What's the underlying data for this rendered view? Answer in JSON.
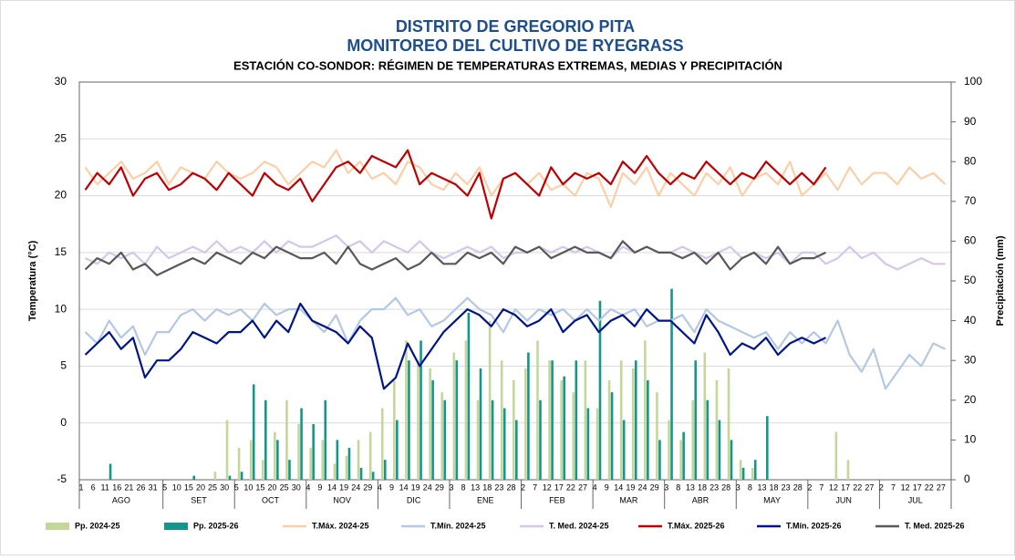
{
  "chart_data": {
    "type": "line",
    "title": "DISTRITO DE GREGORIO PITA",
    "subtitle": "MONITOREO DEL CULTIVO DE RYEGRASS",
    "subtitle2": "ESTACIÓN CO-SONDOR: RÉGIMEN DE TEMPERATURAS EXTREMAS, MEDIAS Y PRECIPITACIÓN",
    "y_label": "Temperatura (°C)",
    "y2_label": "Precipitación (mm)",
    "months": [
      {
        "label": "AGO",
        "days": [
          1,
          6,
          11,
          16,
          21,
          26,
          31
        ]
      },
      {
        "label": "SET",
        "days": [
          5,
          10,
          15,
          20,
          25,
          30
        ]
      },
      {
        "label": "OCT",
        "days": [
          5,
          10,
          15,
          20,
          25,
          30
        ]
      },
      {
        "label": "NOV",
        "days": [
          4,
          9,
          14,
          19,
          24,
          29
        ]
      },
      {
        "label": "DIC",
        "days": [
          4,
          9,
          14,
          19,
          24,
          29
        ]
      },
      {
        "label": "ENE",
        "days": [
          3,
          8,
          13,
          18,
          23,
          28
        ]
      },
      {
        "label": "FEB",
        "days": [
          2,
          7,
          12,
          17,
          22,
          27
        ]
      },
      {
        "label": "MAR",
        "days": [
          4,
          9,
          14,
          19,
          24,
          29
        ]
      },
      {
        "label": "ABR",
        "days": [
          3,
          8,
          13,
          18,
          23,
          28
        ]
      },
      {
        "label": "MAY",
        "days": [
          3,
          8,
          13,
          18,
          23,
          28
        ]
      },
      {
        "label": "JUN",
        "days": [
          2,
          7,
          12,
          17,
          22,
          27
        ]
      },
      {
        "label": "JUL",
        "days": [
          2,
          7,
          12,
          17,
          22,
          27
        ]
      }
    ],
    "ylim": [
      -5,
      30
    ],
    "yticks": [
      -5,
      0,
      5,
      10,
      15,
      20,
      25,
      30
    ],
    "y2lim": [
      0,
      100
    ],
    "y2ticks": [
      0,
      10,
      20,
      30,
      40,
      50,
      60,
      70,
      80,
      90,
      100
    ],
    "grid": true,
    "legend": "bottom",
    "series": [
      {
        "name": "Pp. 2024-25",
        "type": "bar",
        "axis": "y2",
        "color": "#c4d79b",
        "values": [
          0,
          0,
          0,
          0,
          0,
          0,
          0,
          0,
          0,
          0,
          0,
          2,
          15,
          8,
          10,
          5,
          12,
          20,
          14,
          8,
          10,
          4,
          6,
          10,
          12,
          18,
          25,
          35,
          30,
          28,
          22,
          32,
          35,
          20,
          40,
          30,
          25,
          28,
          35,
          30,
          25,
          22,
          30,
          18,
          25,
          30,
          28,
          35,
          22,
          15,
          10,
          20,
          32,
          25,
          28,
          5,
          3,
          0,
          0,
          0,
          0,
          0,
          0,
          12,
          5,
          0,
          0,
          0,
          0,
          0,
          0,
          0,
          0
        ]
      },
      {
        "name": "Pp. 2025-26",
        "type": "bar",
        "axis": "y2",
        "color": "#16968a",
        "values": [
          0,
          0,
          4,
          0,
          0,
          0,
          0,
          0,
          0,
          1,
          0,
          0,
          1,
          2,
          24,
          20,
          10,
          5,
          18,
          14,
          20,
          10,
          8,
          3,
          2,
          5,
          15,
          30,
          35,
          25,
          20,
          30,
          42,
          28,
          20,
          18,
          15,
          32,
          20,
          30,
          26,
          30,
          18,
          45,
          22,
          15,
          30,
          25,
          10,
          48,
          12,
          30,
          20,
          15,
          10,
          3,
          5,
          16,
          0,
          0,
          0,
          0,
          0,
          null,
          null,
          null,
          null,
          null,
          null,
          null,
          null,
          null,
          null
        ]
      },
      {
        "name": "T.Máx. 2024-25",
        "type": "line",
        "color": "#fbcfa7",
        "values": [
          22.5,
          21,
          22,
          23,
          21.5,
          22,
          23,
          21,
          22.5,
          22,
          21.5,
          23,
          22,
          21.5,
          22,
          23,
          22.5,
          21,
          22,
          23,
          22.5,
          24,
          22,
          23,
          21.5,
          22,
          21,
          23,
          22.5,
          21,
          20.5,
          22,
          21,
          22.5,
          20,
          21.5,
          22,
          21,
          22,
          20.5,
          21,
          20,
          22,
          21.5,
          19,
          22,
          21,
          22.5,
          20,
          22,
          21,
          20,
          22,
          21,
          22.5,
          20,
          21.5,
          22,
          21,
          23,
          20,
          21,
          22,
          20.5,
          22.5,
          21,
          22,
          22,
          21,
          22.5,
          21.5,
          22,
          21
        ]
      },
      {
        "name": "T.Mín. 2024-25",
        "type": "line",
        "color": "#b4c8e4",
        "values": [
          8,
          7,
          9,
          7.5,
          8.5,
          6,
          8,
          8,
          9.5,
          10,
          9,
          10,
          9.5,
          10,
          9,
          10.5,
          9.5,
          10,
          10,
          9,
          8,
          9.5,
          7,
          9,
          10,
          10,
          11,
          9.5,
          10,
          8.5,
          9,
          10,
          11,
          10,
          9.5,
          8,
          10,
          9,
          10,
          9.5,
          10,
          9,
          10,
          9,
          10,
          9.5,
          10,
          8.5,
          9,
          9,
          9.5,
          8,
          10,
          9,
          8.5,
          8,
          7.5,
          8,
          6.5,
          8,
          7,
          8,
          7,
          9,
          6,
          4.5,
          6.5,
          3,
          4.5,
          6,
          5,
          7,
          6.5
        ]
      },
      {
        "name": "T. Med. 2024-25",
        "type": "line",
        "color": "#d6c7e9",
        "values": [
          14.5,
          14,
          15,
          14.5,
          15,
          14,
          15.5,
          14.5,
          15,
          15.5,
          15,
          16,
          15,
          15.5,
          15,
          16,
          15,
          16,
          15.5,
          15.5,
          16,
          16.5,
          15.5,
          16,
          15,
          16,
          15.5,
          15,
          16,
          15,
          14.5,
          15,
          15.5,
          15,
          15.5,
          14.5,
          15,
          15,
          15.5,
          15,
          15.5,
          15,
          15.5,
          15,
          14.5,
          15.5,
          15,
          15.5,
          15,
          15,
          15.5,
          15,
          14.5,
          15,
          15.5,
          14.5,
          15,
          14.5,
          15,
          14,
          15,
          15,
          14,
          14.5,
          15.5,
          14.5,
          15,
          14,
          13.5,
          14,
          14.5,
          14,
          14
        ]
      },
      {
        "name": "T.Máx. 2025-26",
        "type": "line",
        "color": "#c00000",
        "values": [
          20.5,
          22,
          21,
          22.5,
          20,
          21.5,
          22,
          20.5,
          21,
          22,
          21.5,
          20.5,
          22,
          21,
          20,
          22,
          21,
          20.5,
          21.5,
          19.5,
          21,
          22.5,
          23,
          22,
          23.5,
          23,
          22.5,
          24,
          21,
          22,
          21.5,
          21,
          20,
          22,
          18,
          21.5,
          22,
          21,
          20,
          22.5,
          21,
          22,
          21.5,
          22,
          21,
          23,
          22,
          23.5,
          22,
          21,
          22,
          21.5,
          23,
          22,
          21,
          22,
          21.5,
          23,
          22,
          21,
          22,
          21,
          22.5,
          null,
          null,
          null,
          null,
          null,
          null,
          null,
          null,
          null,
          null
        ]
      },
      {
        "name": "T.Mín. 2025-26",
        "type": "line",
        "color": "#00158c",
        "values": [
          6,
          7,
          8,
          6.5,
          7.5,
          4,
          5.5,
          5.5,
          6.5,
          8,
          7.5,
          7,
          8,
          8,
          9,
          7.5,
          9,
          8,
          10.5,
          9,
          8.5,
          8,
          7,
          8.5,
          7.5,
          3,
          4,
          7,
          5,
          6.5,
          8,
          9,
          10,
          9.5,
          8.5,
          10,
          9.5,
          8.5,
          9,
          10,
          8,
          9,
          9.5,
          8,
          9,
          9.5,
          8.5,
          10,
          9,
          9,
          8,
          7,
          9.5,
          8,
          6,
          7,
          6.5,
          7.5,
          6,
          7,
          7.5,
          7,
          7.5,
          null,
          null,
          null,
          null,
          null,
          null,
          null,
          null,
          null,
          null
        ]
      },
      {
        "name": "T. Med. 2025-26",
        "type": "line",
        "color": "#595959",
        "values": [
          13.5,
          14.5,
          14,
          15,
          13.5,
          14,
          13,
          13.5,
          14,
          14.5,
          14,
          15,
          14.5,
          14,
          15,
          14.5,
          15.5,
          15,
          14.5,
          14.5,
          15,
          14,
          15.5,
          14,
          13.5,
          14,
          14.5,
          13.5,
          14,
          15,
          14,
          14,
          15,
          14.5,
          15,
          14,
          15.5,
          15,
          15.5,
          14.5,
          15,
          15.5,
          15,
          15,
          14.5,
          16,
          15,
          15.5,
          15,
          15,
          14.5,
          15,
          14,
          15,
          13.5,
          14.5,
          15,
          14,
          15.5,
          14,
          14.5,
          14.5,
          15,
          null,
          null,
          null,
          null,
          null,
          null,
          null,
          null,
          null,
          null
        ]
      }
    ]
  }
}
